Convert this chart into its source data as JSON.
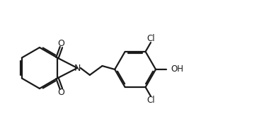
{
  "bg_color": "#ffffff",
  "line_color": "#1a1a1a",
  "line_width": 1.6,
  "font_size": 8.5,
  "label_color": "#1a1a1a",
  "xlim": [
    0,
    10.5
  ],
  "ylim": [
    0,
    5.4
  ]
}
